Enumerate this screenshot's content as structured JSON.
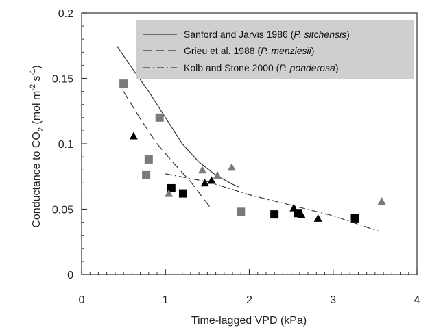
{
  "chart_data": {
    "type": "scatter",
    "xlabel": "Time-lagged VPD (kPa)",
    "ylabel_parts": [
      "Conductance to CO",
      "2",
      " (mol m",
      "-2",
      " s",
      "-1",
      ")"
    ],
    "xlim": [
      0,
      4
    ],
    "ylim": [
      0,
      0.2
    ],
    "x_ticks": [
      0,
      1,
      2,
      3,
      4
    ],
    "x_tick_labels": [
      "0",
      "1",
      "2",
      "3",
      "4"
    ],
    "y_ticks": [
      0,
      0.05,
      0.1,
      0.15,
      0.2
    ],
    "y_tick_labels": [
      "0",
      "0.05",
      "0.1",
      "0.15",
      "0.2"
    ],
    "legend_placement": "top-right",
    "legend_background": "#cfcfcf",
    "lines": [
      {
        "name": "Sanford and Jarvis 1986",
        "species": "P. sitchensis",
        "style": "solid",
        "points": [
          [
            0.42,
            0.175
          ],
          [
            0.6,
            0.158
          ],
          [
            0.8,
            0.14
          ],
          [
            1.0,
            0.12
          ],
          [
            1.2,
            0.1
          ],
          [
            1.4,
            0.086
          ],
          [
            1.6,
            0.076
          ],
          [
            1.8,
            0.069
          ],
          [
            1.87,
            0.067
          ]
        ]
      },
      {
        "name": "Grieu et al. 1988",
        "species": "P. menziesii",
        "style": "dashed",
        "points": [
          [
            0.5,
            0.14
          ],
          [
            0.7,
            0.119
          ],
          [
            0.9,
            0.1
          ],
          [
            1.1,
            0.085
          ],
          [
            1.3,
            0.071
          ],
          [
            1.55,
            0.05
          ]
        ]
      },
      {
        "name": "Kolb and Stone 2000",
        "species": "P. ponderosa",
        "style": "dashdot",
        "points": [
          [
            1.0,
            0.077
          ],
          [
            1.5,
            0.071
          ],
          [
            2.0,
            0.061
          ],
          [
            2.5,
            0.053
          ],
          [
            3.0,
            0.045
          ],
          [
            3.55,
            0.033
          ]
        ]
      }
    ],
    "marker_series": [
      {
        "marker": "square",
        "color": "#7a7a7a",
        "points": [
          [
            0.5,
            0.146
          ],
          [
            0.93,
            0.12
          ],
          [
            0.8,
            0.088
          ],
          [
            0.77,
            0.076
          ],
          [
            1.9,
            0.048
          ]
        ]
      },
      {
        "marker": "square",
        "color": "#000000",
        "points": [
          [
            1.07,
            0.066
          ],
          [
            1.21,
            0.062
          ],
          [
            2.3,
            0.046
          ],
          [
            2.58,
            0.047
          ],
          [
            3.26,
            0.043
          ]
        ]
      },
      {
        "marker": "triangle",
        "color": "#7a7a7a",
        "points": [
          [
            1.04,
            0.062
          ],
          [
            1.44,
            0.08
          ],
          [
            1.62,
            0.076
          ],
          [
            1.79,
            0.082
          ],
          [
            3.58,
            0.056
          ]
        ]
      },
      {
        "marker": "triangle",
        "color": "#000000",
        "points": [
          [
            0.62,
            0.106
          ],
          [
            1.47,
            0.07
          ],
          [
            1.55,
            0.072
          ],
          [
            2.53,
            0.051
          ],
          [
            2.62,
            0.046
          ],
          [
            2.82,
            0.043
          ]
        ]
      }
    ]
  }
}
